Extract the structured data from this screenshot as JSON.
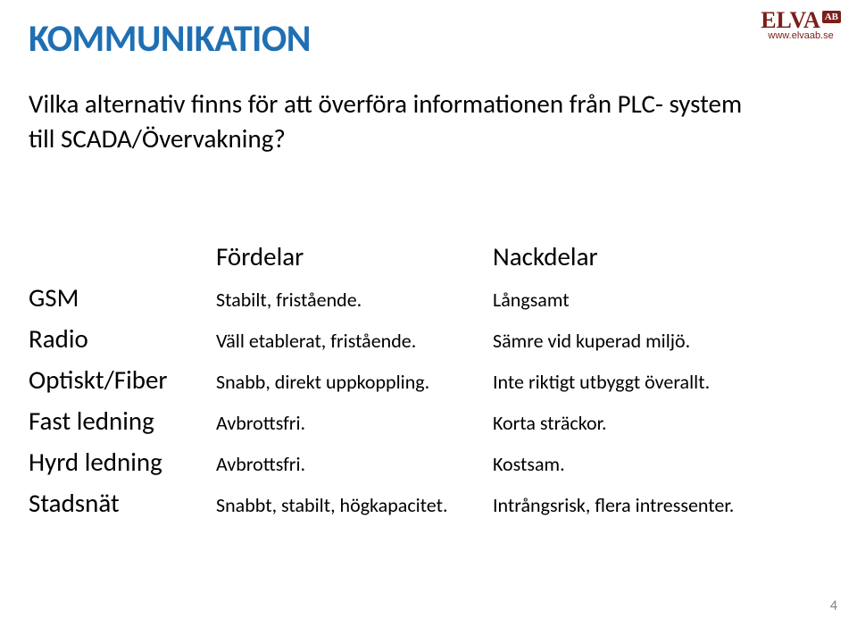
{
  "logo": {
    "brand": "ELVA",
    "suffix": "AB",
    "url": "www.elvaab.se",
    "brand_color": "#7a1f1a"
  },
  "title": {
    "text": "KOMMUNIKATION",
    "color": "#1f6fb3",
    "fontsize": 42
  },
  "subtitle": {
    "text": "Vilka alternativ finns för att överföra informationen från PLC- system till SCADA/Övervakning?",
    "fontsize": 29
  },
  "table": {
    "header": {
      "name": "",
      "advantages": "Fördelar",
      "disadvantages": "Nackdelar",
      "fontsize": 29
    },
    "name_fontsize": 29,
    "cell_fontsize": 22,
    "rows": [
      {
        "name": "GSM",
        "advantages": "Stabilt, fristående.",
        "disadvantages": "Långsamt"
      },
      {
        "name": "Radio",
        "advantages": "Väll etablerat, fristående.",
        "disadvantages": "Sämre vid kuperad miljö."
      },
      {
        "name": "Optiskt/Fiber",
        "advantages": "Snabb, direkt uppkoppling.",
        "disadvantages": "Inte riktigt utbyggt överallt."
      },
      {
        "name": "Fast ledning",
        "advantages": "Avbrottsfri.",
        "disadvantages": "Korta sträckor."
      },
      {
        "name": "Hyrd ledning",
        "advantages": "Avbrottsfri.",
        "disadvantages": "Kostsam."
      },
      {
        "name": "Stadsnät",
        "advantages": "Snabbt, stabilt, högkapacitet.",
        "disadvantages": "Intrångsrisk, flera intressenter."
      }
    ]
  },
  "page_number": "4"
}
